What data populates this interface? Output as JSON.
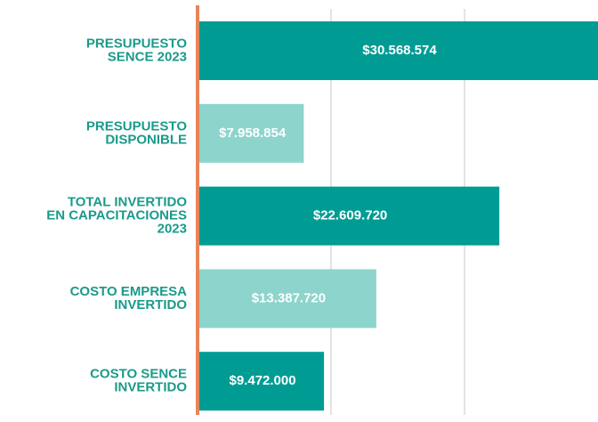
{
  "chart_data": {
    "type": "barh",
    "categories": [
      [
        "PRESUPUESTO",
        "SENCE 2023"
      ],
      [
        "PRESUPUESTO",
        "DISPONIBLE"
      ],
      [
        "TOTAL INVERTIDO",
        "EN CAPACITACIONES",
        "2023"
      ],
      [
        "COSTO EMPRESA",
        "INVERTIDO"
      ],
      [
        "COSTO SENCE",
        "INVERTIDO"
      ]
    ],
    "values": [
      30568574,
      7958854,
      22609720,
      13387720,
      9472000
    ],
    "value_labels": [
      "$30.568.574",
      "$7.958.854",
      "$22.609.720",
      "$13.387.720",
      "$9.472.000"
    ],
    "colors": [
      "#009c94",
      "#8dd4cc",
      "#009c94",
      "#8dd4cc",
      "#009c94"
    ],
    "xlim": [
      0,
      30000000
    ],
    "xticks": [
      0,
      10000000,
      20000000,
      30000000
    ],
    "grid": true
  }
}
